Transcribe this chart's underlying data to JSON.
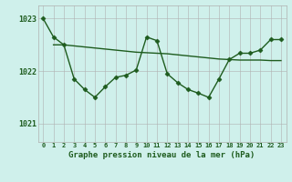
{
  "title": "Graphe pression niveau de la mer (hPa)",
  "background_color": "#cff0eb",
  "line_color": "#1e5c1e",
  "grid_color": "#b0b0b0",
  "ylim": [
    1020.65,
    1023.25
  ],
  "yticks": [
    1021,
    1022,
    1023
  ],
  "xlim": [
    -0.5,
    23.5
  ],
  "xticks": [
    0,
    1,
    2,
    3,
    4,
    5,
    6,
    7,
    8,
    9,
    10,
    11,
    12,
    13,
    14,
    15,
    16,
    17,
    18,
    19,
    20,
    21,
    22,
    23
  ],
  "smooth_x": [
    1,
    2,
    3,
    4,
    5,
    6,
    7,
    8,
    9,
    10,
    11,
    12,
    13,
    14,
    15,
    16,
    17,
    18,
    19,
    20,
    21,
    22,
    23
  ],
  "smooth_y": [
    1022.5,
    1022.5,
    1022.48,
    1022.46,
    1022.44,
    1022.42,
    1022.4,
    1022.38,
    1022.36,
    1022.35,
    1022.34,
    1022.33,
    1022.31,
    1022.29,
    1022.27,
    1022.25,
    1022.23,
    1022.22,
    1022.21,
    1022.21,
    1022.21,
    1022.2,
    1022.2
  ],
  "jagged_x": [
    0,
    1,
    2,
    3,
    4,
    5,
    6,
    7,
    8,
    9,
    10,
    11,
    12,
    13,
    14,
    15,
    16,
    17,
    18,
    19,
    20,
    21,
    22,
    23
  ],
  "jagged_y": [
    1023.0,
    1022.65,
    1022.5,
    1021.85,
    1021.65,
    1021.5,
    1021.7,
    1021.88,
    1021.92,
    1022.02,
    1022.65,
    1022.58,
    1021.95,
    1021.78,
    1021.65,
    1021.58,
    1021.5,
    1021.85,
    1022.22,
    1022.34,
    1022.34,
    1022.4,
    1022.6,
    1022.6
  ]
}
